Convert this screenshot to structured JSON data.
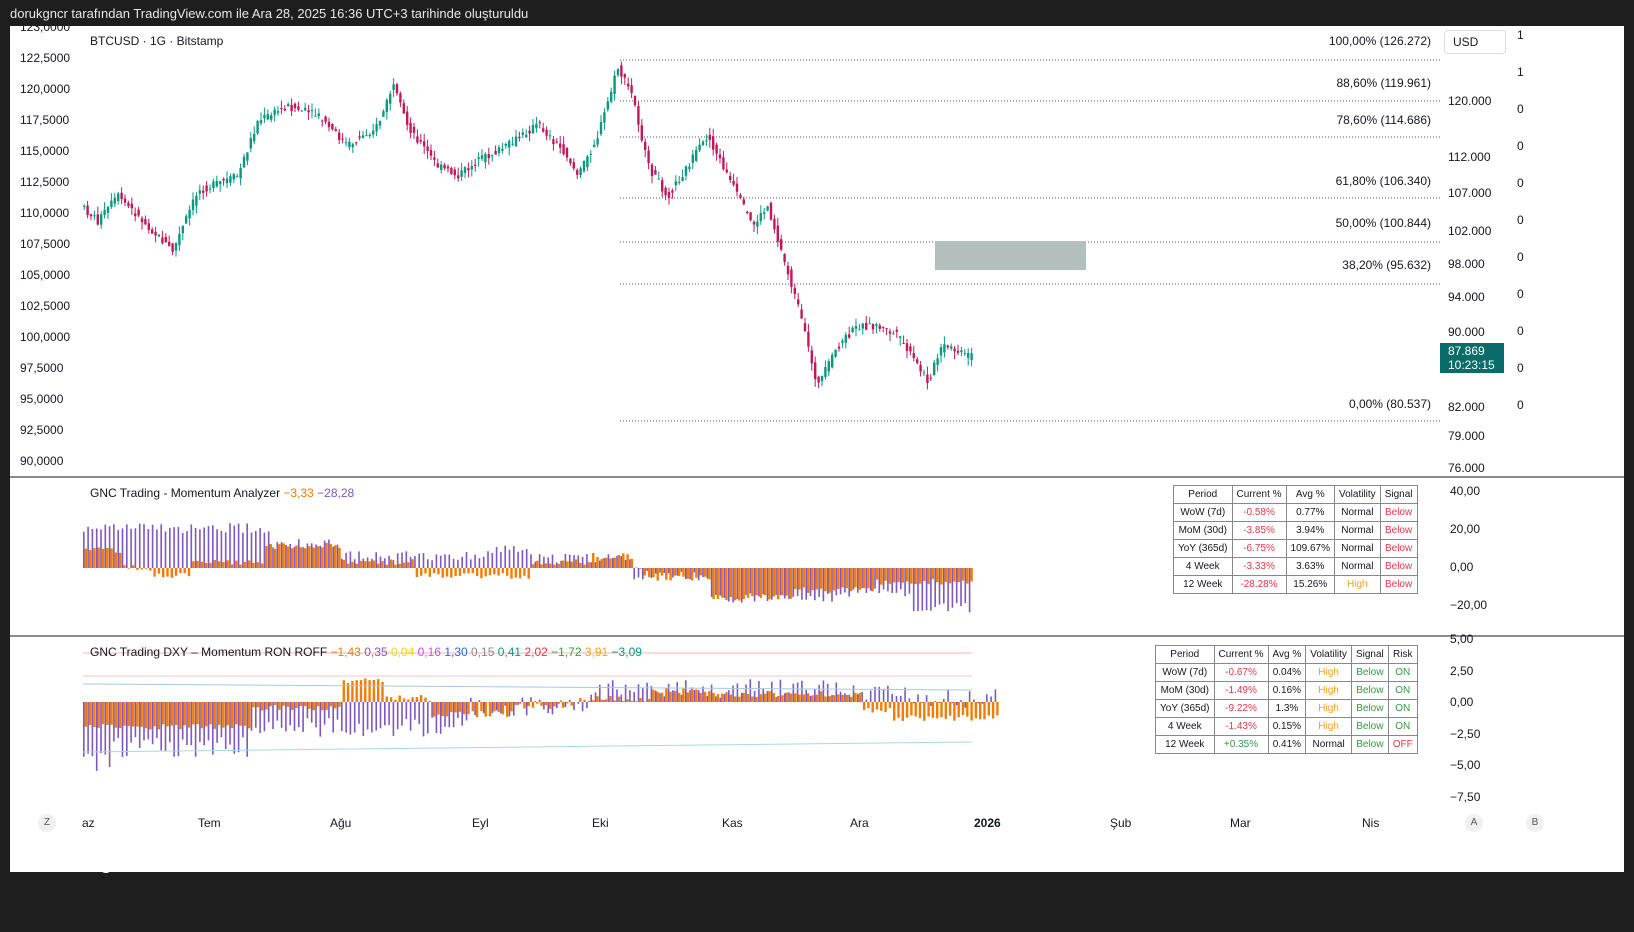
{
  "header": "dorukgncr tarafından TradingView.com ile Ara 28, 2025 16:36 UTC+3 tarihinde oluşturuldu",
  "symbol": "BTCUSD · 1G · Bitstamp",
  "currency": "USD",
  "price_tag": {
    "price": "87.869",
    "countdown": "10:23:15"
  },
  "left_axis": [
    "123,0000",
    "122,5000",
    "120,0000",
    "117,5000",
    "115,0000",
    "112,5000",
    "110,0000",
    "107,5000",
    "105,0000",
    "102,5000",
    "100,0000",
    "97,5000",
    "95,0000",
    "92,5000",
    "90,0000"
  ],
  "right_axis": [
    "120.000",
    "112.000",
    "107.000",
    "102.000",
    "98.000",
    "94.000",
    "90.000",
    "82.000",
    "79.000",
    "76.000"
  ],
  "right_axis2": [
    "1",
    "1",
    "0",
    "0",
    "0",
    "0",
    "0",
    "0",
    "0",
    "0",
    "0"
  ],
  "fib_levels": [
    "100,00% (126.272)",
    "88,60% (119.961)",
    "78,60% (114.686)",
    "61,80% (106.340)",
    "50,00% (100.844)",
    "38,20% (95.632)",
    "0,00% (80.537)"
  ],
  "x_axis": [
    "az",
    "Tem",
    "Ağu",
    "Eyl",
    "Eki",
    "Kas",
    "Ara",
    "2026",
    "Şub",
    "Mar",
    "Nis"
  ],
  "x_buttons": [
    "Z",
    "A",
    "B"
  ],
  "panel1": {
    "title": "GNC Trading - Momentum Analyzer",
    "values": [
      "−3,33",
      "−28,28"
    ],
    "axis": [
      "40,00",
      "20,00",
      "0,00",
      "−20,00"
    ],
    "table": {
      "headers": [
        "Period",
        "Current %",
        "Avg %",
        "Volatility",
        "Signal"
      ],
      "rows": [
        [
          "WoW (7d)",
          "-0.58%",
          "0.77%",
          "Normal",
          "Below"
        ],
        [
          "MoM (30d)",
          "-3.85%",
          "3.94%",
          "Normal",
          "Below"
        ],
        [
          "YoY (365d)",
          "-6.75%",
          "109.67%",
          "Normal",
          "Below"
        ],
        [
          "4 Week",
          "-3.33%",
          "3.63%",
          "Normal",
          "Below"
        ],
        [
          "12 Week",
          "-28.28%",
          "15.26%",
          "High",
          "Below"
        ]
      ]
    }
  },
  "panel2": {
    "title": "GNC Trading DXY – Momentum RON ROFF",
    "values": [
      "−1,43",
      "0,35",
      "0,04",
      "0,16",
      "1,30",
      "0,15",
      "0,41",
      "2,02",
      "−1,72",
      "3,91",
      "−3,09"
    ],
    "value_colors": [
      "#f57c00",
      "#7e57c2",
      "#ffd600",
      "#e040fb",
      "#2962ff",
      "#888888",
      "#089981",
      "#f23645",
      "#2e9e3e",
      "#f7a21b",
      "#089981"
    ],
    "axis": [
      "5,00",
      "2,50",
      "0,00",
      "−2,50",
      "−5,00",
      "−7,50"
    ],
    "table": {
      "headers": [
        "Period",
        "Current %",
        "Avg %",
        "Volatility",
        "Signal",
        "Risk"
      ],
      "rows": [
        [
          "WoW (7d)",
          "-0.67%",
          "0.04%",
          "High",
          "Below",
          "ON"
        ],
        [
          "MoM (30d)",
          "-1.49%",
          "0.16%",
          "High",
          "Below",
          "ON"
        ],
        [
          "YoY (365d)",
          "-9.22%",
          "1.3%",
          "High",
          "Below",
          "ON"
        ],
        [
          "4 Week",
          "-1.43%",
          "0.15%",
          "High",
          "Below",
          "ON"
        ],
        [
          "12 Week",
          "+0.35%",
          "0.41%",
          "Normal",
          "Below",
          "OFF"
        ]
      ]
    }
  },
  "logo": "TradingView",
  "colors": {
    "up": "#089981",
    "down": "#c2185b",
    "orange": "#f57c00",
    "purple": "#7e57c2",
    "zone": "#b2bfbd",
    "tag": "#0a6b6b"
  }
}
